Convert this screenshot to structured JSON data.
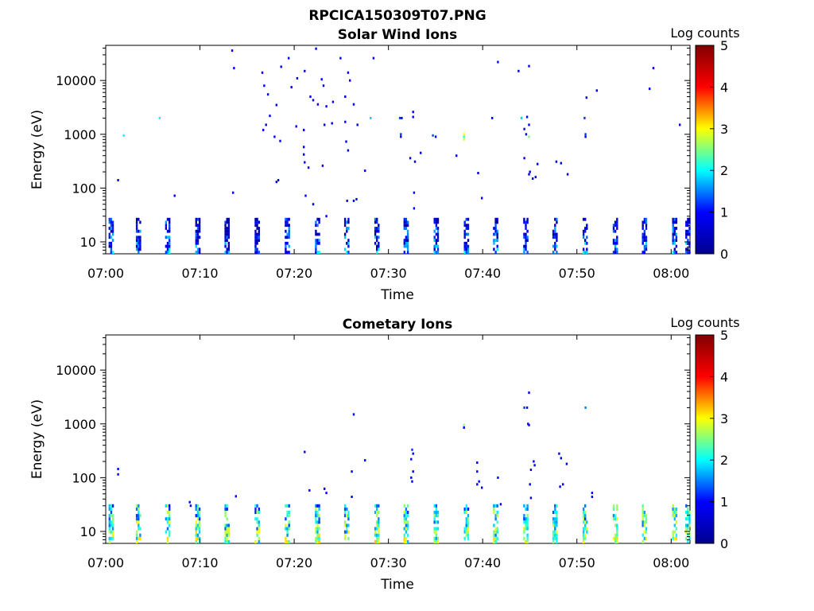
{
  "figure": {
    "title": "RPCICA150309T07.PNG"
  },
  "colors": {
    "background": "#ffffff",
    "axis": "#000000",
    "colormap": [
      "#00008f",
      "#0000ff",
      "#00ffff",
      "#ffff00",
      "#ff0000",
      "#800000"
    ]
  },
  "chart_data": [
    {
      "type": "heatmap",
      "title": "Solar Wind Ions",
      "xlabel": "Time",
      "ylabel": "Energy (eV)",
      "yscale": "log",
      "xlim": [
        "07:00",
        "08:02"
      ],
      "ylim": [
        6,
        45000
      ],
      "xticks": [
        "07:00",
        "07:10",
        "07:20",
        "07:30",
        "07:40",
        "07:50",
        "08:00"
      ],
      "yticks": [
        {
          "value": 10,
          "label": "10"
        },
        {
          "value": 100,
          "label": "100"
        },
        {
          "value": 1000,
          "label": "1000"
        },
        {
          "value": 10000,
          "label": "10000"
        }
      ],
      "colorbar": {
        "label": "Log counts",
        "range": [
          0,
          5
        ],
        "ticks": [
          "0",
          "1",
          "2",
          "3",
          "4",
          "5"
        ]
      },
      "low_energy_scans_min": [
        0.3,
        3.2,
        6.3,
        9.5,
        12.6,
        15.8,
        19.0,
        22.2,
        25.3,
        28.5,
        31.6,
        34.8,
        38.0,
        41.1,
        44.3,
        47.4,
        50.6,
        53.8,
        56.9,
        60.1,
        61.5
      ],
      "scan_band_ev": [
        6,
        28
      ],
      "scan_level": 1.2,
      "points": [
        {
          "t": 13.4,
          "e": 36000,
          "v": 0.8
        },
        {
          "t": 13.6,
          "e": 17000,
          "v": 0.9
        },
        {
          "t": 22.3,
          "e": 39000,
          "v": 0.8
        },
        {
          "t": 19.4,
          "e": 26000,
          "v": 0.8
        },
        {
          "t": 24.9,
          "e": 26000,
          "v": 0.9
        },
        {
          "t": 28.4,
          "e": 26000,
          "v": 0.8
        },
        {
          "t": 18.6,
          "e": 18000,
          "v": 0.9
        },
        {
          "t": 16.6,
          "e": 14000,
          "v": 0.8
        },
        {
          "t": 21.1,
          "e": 15000,
          "v": 0.8
        },
        {
          "t": 25.7,
          "e": 14000,
          "v": 1.0
        },
        {
          "t": 25.9,
          "e": 10000,
          "v": 0.8
        },
        {
          "t": 16.8,
          "e": 8000,
          "v": 0.9
        },
        {
          "t": 20.3,
          "e": 11000,
          "v": 0.8
        },
        {
          "t": 19.7,
          "e": 7500,
          "v": 0.8
        },
        {
          "t": 22.9,
          "e": 10500,
          "v": 0.9
        },
        {
          "t": 23.1,
          "e": 8000,
          "v": 0.8
        },
        {
          "t": 21.7,
          "e": 5000,
          "v": 0.8
        },
        {
          "t": 22.5,
          "e": 3600,
          "v": 0.9
        },
        {
          "t": 23.4,
          "e": 3300,
          "v": 0.8
        },
        {
          "t": 17.2,
          "e": 5500,
          "v": 0.8
        },
        {
          "t": 18.1,
          "e": 3500,
          "v": 0.8
        },
        {
          "t": 22.0,
          "e": 4300,
          "v": 0.9
        },
        {
          "t": 24.1,
          "e": 4000,
          "v": 0.8
        },
        {
          "t": 25.4,
          "e": 5000,
          "v": 0.8
        },
        {
          "t": 26.3,
          "e": 3600,
          "v": 0.8
        },
        {
          "t": 17.4,
          "e": 2200,
          "v": 1.0
        },
        {
          "t": 17.0,
          "e": 1500,
          "v": 0.8
        },
        {
          "t": 16.7,
          "e": 1200,
          "v": 0.8
        },
        {
          "t": 17.9,
          "e": 900,
          "v": 1.0
        },
        {
          "t": 20.2,
          "e": 1400,
          "v": 0.8
        },
        {
          "t": 21.0,
          "e": 1200,
          "v": 0.8
        },
        {
          "t": 23.2,
          "e": 1500,
          "v": 0.9
        },
        {
          "t": 24.0,
          "e": 1600,
          "v": 0.8
        },
        {
          "t": 25.4,
          "e": 1700,
          "v": 0.8
        },
        {
          "t": 26.7,
          "e": 1500,
          "v": 0.8
        },
        {
          "t": 18.5,
          "e": 750,
          "v": 0.8
        },
        {
          "t": 21.0,
          "e": 580,
          "v": 0.8
        },
        {
          "t": 25.5,
          "e": 730,
          "v": 0.8
        },
        {
          "t": 25.7,
          "e": 500,
          "v": 0.8
        },
        {
          "t": 21.0,
          "e": 420,
          "v": 0.8
        },
        {
          "t": 21.1,
          "e": 300,
          "v": 0.8
        },
        {
          "t": 21.5,
          "e": 240,
          "v": 0.8
        },
        {
          "t": 23.0,
          "e": 260,
          "v": 0.8
        },
        {
          "t": 18.3,
          "e": 140,
          "v": 0.8
        },
        {
          "t": 18.1,
          "e": 130,
          "v": 0.8
        },
        {
          "t": 21.2,
          "e": 72,
          "v": 0.9
        },
        {
          "t": 22.0,
          "e": 50,
          "v": 0.8
        },
        {
          "t": 23.4,
          "e": 30,
          "v": 1.0
        },
        {
          "t": 25.6,
          "e": 58,
          "v": 0.8
        },
        {
          "t": 26.3,
          "e": 58,
          "v": 0.8
        },
        {
          "t": 26.6,
          "e": 62,
          "v": 0.8
        },
        {
          "t": 27.5,
          "e": 210,
          "v": 0.8
        },
        {
          "t": 13.5,
          "e": 82,
          "v": 1.0
        },
        {
          "t": 7.3,
          "e": 72,
          "v": 0.8
        },
        {
          "t": 1.3,
          "e": 140,
          "v": 0.8
        },
        {
          "t": 1.9,
          "e": 950,
          "v": 2.0
        },
        {
          "t": 5.7,
          "e": 2000,
          "v": 2.0
        },
        {
          "t": 28.1,
          "e": 2000,
          "v": 1.8
        },
        {
          "t": 31.2,
          "e": 2000,
          "v": 1.2
        },
        {
          "t": 31.4,
          "e": 2000,
          "v": 1.0
        },
        {
          "t": 32.6,
          "e": 2600,
          "v": 0.8
        },
        {
          "t": 32.6,
          "e": 2100,
          "v": 1.0
        },
        {
          "t": 31.3,
          "e": 1000,
          "v": 1.2
        },
        {
          "t": 31.3,
          "e": 900,
          "v": 1.0
        },
        {
          "t": 34.7,
          "e": 950,
          "v": 1.3
        },
        {
          "t": 35.0,
          "e": 900,
          "v": 1.0
        },
        {
          "t": 38.0,
          "e": 1000,
          "v": 3.0
        },
        {
          "t": 38.0,
          "e": 900,
          "v": 2.2
        },
        {
          "t": 38.0,
          "e": 800,
          "v": 2.8
        },
        {
          "t": 41.0,
          "e": 2000,
          "v": 0.9
        },
        {
          "t": 44.1,
          "e": 2000,
          "v": 1.8
        },
        {
          "t": 44.7,
          "e": 2100,
          "v": 1.0
        },
        {
          "t": 44.9,
          "e": 1500,
          "v": 0.8
        },
        {
          "t": 44.6,
          "e": 1000,
          "v": 1.0
        },
        {
          "t": 44.9,
          "e": 900,
          "v": 2.5
        },
        {
          "t": 44.4,
          "e": 1250,
          "v": 0.9
        },
        {
          "t": 50.8,
          "e": 2000,
          "v": 1.2
        },
        {
          "t": 50.9,
          "e": 1000,
          "v": 1.2
        },
        {
          "t": 50.9,
          "e": 900,
          "v": 0.9
        },
        {
          "t": 51.0,
          "e": 4800,
          "v": 0.8
        },
        {
          "t": 52.1,
          "e": 6500,
          "v": 0.9
        },
        {
          "t": 41.6,
          "e": 22000,
          "v": 0.8
        },
        {
          "t": 43.8,
          "e": 15000,
          "v": 0.8
        },
        {
          "t": 44.9,
          "e": 18500,
          "v": 0.9
        },
        {
          "t": 57.7,
          "e": 7000,
          "v": 0.8
        },
        {
          "t": 58.1,
          "e": 17000,
          "v": 0.8
        },
        {
          "t": 60.9,
          "e": 1500,
          "v": 0.8
        },
        {
          "t": 33.4,
          "e": 450,
          "v": 0.8
        },
        {
          "t": 32.3,
          "e": 360,
          "v": 0.8
        },
        {
          "t": 32.8,
          "e": 310,
          "v": 0.8
        },
        {
          "t": 37.2,
          "e": 400,
          "v": 0.8
        },
        {
          "t": 39.5,
          "e": 190,
          "v": 0.8
        },
        {
          "t": 39.9,
          "e": 65,
          "v": 1.0
        },
        {
          "t": 44.4,
          "e": 360,
          "v": 0.8
        },
        {
          "t": 45.8,
          "e": 280,
          "v": 0.8
        },
        {
          "t": 45.0,
          "e": 200,
          "v": 0.8
        },
        {
          "t": 44.9,
          "e": 180,
          "v": 0.8
        },
        {
          "t": 45.3,
          "e": 150,
          "v": 1.0
        },
        {
          "t": 45.6,
          "e": 160,
          "v": 0.8
        },
        {
          "t": 47.8,
          "e": 310,
          "v": 0.8
        },
        {
          "t": 48.3,
          "e": 290,
          "v": 0.8
        },
        {
          "t": 49.0,
          "e": 180,
          "v": 0.8
        },
        {
          "t": 32.7,
          "e": 82,
          "v": 1.0
        },
        {
          "t": 32.7,
          "e": 42,
          "v": 0.8
        }
      ]
    },
    {
      "type": "heatmap",
      "title": "Cometary Ions",
      "xlabel": "Time",
      "ylabel": "Energy (eV)",
      "yscale": "log",
      "xlim": [
        "07:00",
        "08:02"
      ],
      "ylim": [
        6,
        45000
      ],
      "xticks": [
        "07:00",
        "07:10",
        "07:20",
        "07:30",
        "07:40",
        "07:50",
        "08:00"
      ],
      "yticks": [
        {
          "value": 10,
          "label": "10"
        },
        {
          "value": 100,
          "label": "100"
        },
        {
          "value": 1000,
          "label": "1000"
        },
        {
          "value": 10000,
          "label": "10000"
        }
      ],
      "colorbar": {
        "label": "Log counts",
        "range": [
          0,
          5
        ],
        "ticks": [
          "0",
          "1",
          "2",
          "3",
          "4",
          "5"
        ]
      },
      "low_energy_scans_min": [
        0.3,
        3.2,
        6.3,
        9.5,
        12.6,
        15.8,
        19.0,
        22.2,
        25.3,
        28.5,
        31.6,
        34.8,
        38.0,
        41.1,
        44.3,
        47.4,
        50.6,
        53.8,
        56.9,
        60.1,
        61.5
      ],
      "scan_band_ev": [
        6,
        32
      ],
      "scan_level": 2.4,
      "points": [
        {
          "t": 1.3,
          "e": 145,
          "v": 1.0
        },
        {
          "t": 1.3,
          "e": 115,
          "v": 0.9
        },
        {
          "t": 8.9,
          "e": 35,
          "v": 1.0
        },
        {
          "t": 9.0,
          "e": 30,
          "v": 0.9
        },
        {
          "t": 13.8,
          "e": 45,
          "v": 0.9
        },
        {
          "t": 21.1,
          "e": 300,
          "v": 0.8
        },
        {
          "t": 21.6,
          "e": 58,
          "v": 0.8
        },
        {
          "t": 23.2,
          "e": 62,
          "v": 0.8
        },
        {
          "t": 23.4,
          "e": 52,
          "v": 0.8
        },
        {
          "t": 26.1,
          "e": 130,
          "v": 0.8
        },
        {
          "t": 26.3,
          "e": 1500,
          "v": 0.8
        },
        {
          "t": 27.5,
          "e": 210,
          "v": 0.8
        },
        {
          "t": 26.1,
          "e": 44,
          "v": 1.0
        },
        {
          "t": 32.5,
          "e": 330,
          "v": 1.2
        },
        {
          "t": 32.6,
          "e": 280,
          "v": 1.0
        },
        {
          "t": 32.4,
          "e": 220,
          "v": 0.9
        },
        {
          "t": 32.6,
          "e": 130,
          "v": 0.8
        },
        {
          "t": 32.4,
          "e": 100,
          "v": 0.9
        },
        {
          "t": 32.5,
          "e": 85,
          "v": 0.8
        },
        {
          "t": 38.0,
          "e": 950,
          "v": 2.5
        },
        {
          "t": 38.0,
          "e": 850,
          "v": 1.0
        },
        {
          "t": 39.4,
          "e": 190,
          "v": 0.8
        },
        {
          "t": 39.4,
          "e": 130,
          "v": 0.9
        },
        {
          "t": 39.6,
          "e": 85,
          "v": 1.0
        },
        {
          "t": 39.4,
          "e": 75,
          "v": 0.9
        },
        {
          "t": 39.9,
          "e": 65,
          "v": 0.8
        },
        {
          "t": 41.6,
          "e": 100,
          "v": 0.8
        },
        {
          "t": 41.9,
          "e": 32,
          "v": 0.9
        },
        {
          "t": 44.4,
          "e": 2000,
          "v": 1.2
        },
        {
          "t": 44.7,
          "e": 2000,
          "v": 1.0
        },
        {
          "t": 44.9,
          "e": 3800,
          "v": 0.8
        },
        {
          "t": 44.8,
          "e": 1000,
          "v": 1.0
        },
        {
          "t": 44.9,
          "e": 950,
          "v": 0.9
        },
        {
          "t": 45.4,
          "e": 200,
          "v": 0.8
        },
        {
          "t": 45.5,
          "e": 170,
          "v": 0.8
        },
        {
          "t": 45.1,
          "e": 140,
          "v": 0.9
        },
        {
          "t": 45.0,
          "e": 75,
          "v": 0.8
        },
        {
          "t": 45.1,
          "e": 42,
          "v": 0.9
        },
        {
          "t": 48.1,
          "e": 280,
          "v": 0.8
        },
        {
          "t": 48.3,
          "e": 230,
          "v": 0.8
        },
        {
          "t": 48.9,
          "e": 180,
          "v": 0.8
        },
        {
          "t": 48.5,
          "e": 75,
          "v": 0.8
        },
        {
          "t": 48.2,
          "e": 68,
          "v": 0.8
        },
        {
          "t": 50.9,
          "e": 2000,
          "v": 1.5
        },
        {
          "t": 51.6,
          "e": 52,
          "v": 0.8
        },
        {
          "t": 51.6,
          "e": 44,
          "v": 0.9
        }
      ]
    }
  ]
}
